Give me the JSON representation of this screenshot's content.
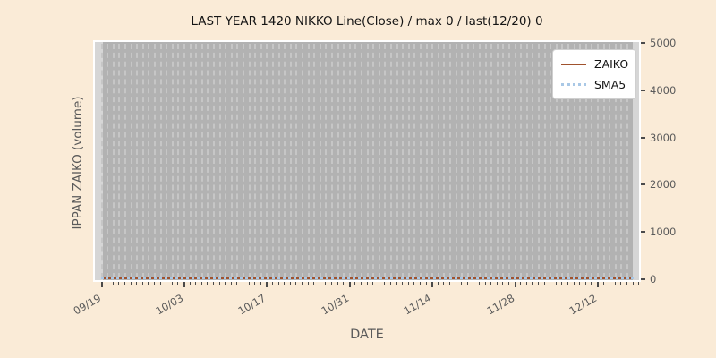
{
  "chart_data": {
    "type": "line",
    "title": "LAST YEAR 1420 NIKKO Line(Close) / max 0 / last(12/20) 0",
    "xlabel": "DATE",
    "ylabel": "IPPAN ZAIKO (volume)",
    "x_tick_labels": [
      "09/19",
      "10/03",
      "10/17",
      "10/31",
      "11/14",
      "11/28",
      "12/12"
    ],
    "x_major_tick_days": [
      0,
      14,
      28,
      42,
      56,
      70,
      84
    ],
    "x_start": "09/19",
    "x_end": "12/20",
    "total_days": 92,
    "y_ticks": [
      0,
      1000,
      2000,
      3000,
      4000,
      5000
    ],
    "ylim": [
      0,
      5000
    ],
    "grid": "daily vertical dashed gridlines on gray plot background",
    "legend_position": "upper right",
    "series": [
      {
        "name": "ZAIKO",
        "style": "solid",
        "color": "#a0522d",
        "constant_value": 0
      },
      {
        "name": "SMA5",
        "style": "dotted",
        "color": "#a9c8e6",
        "constant_value": 0
      }
    ],
    "max_value": 0,
    "last_value": 0,
    "last_date": "12/20"
  },
  "colors": {
    "figure_bg": "#faebd7",
    "plot_bg": "#b2b2b2",
    "plot_edge_strip": "#d6d6d6",
    "gridline": "#c6c6c6",
    "tick_mark": "#4a4a4a",
    "tick_text": "#5a5a5a",
    "title_text": "#141414",
    "legend_bg": "#ffffff",
    "legend_border": "#cfcfcf"
  }
}
